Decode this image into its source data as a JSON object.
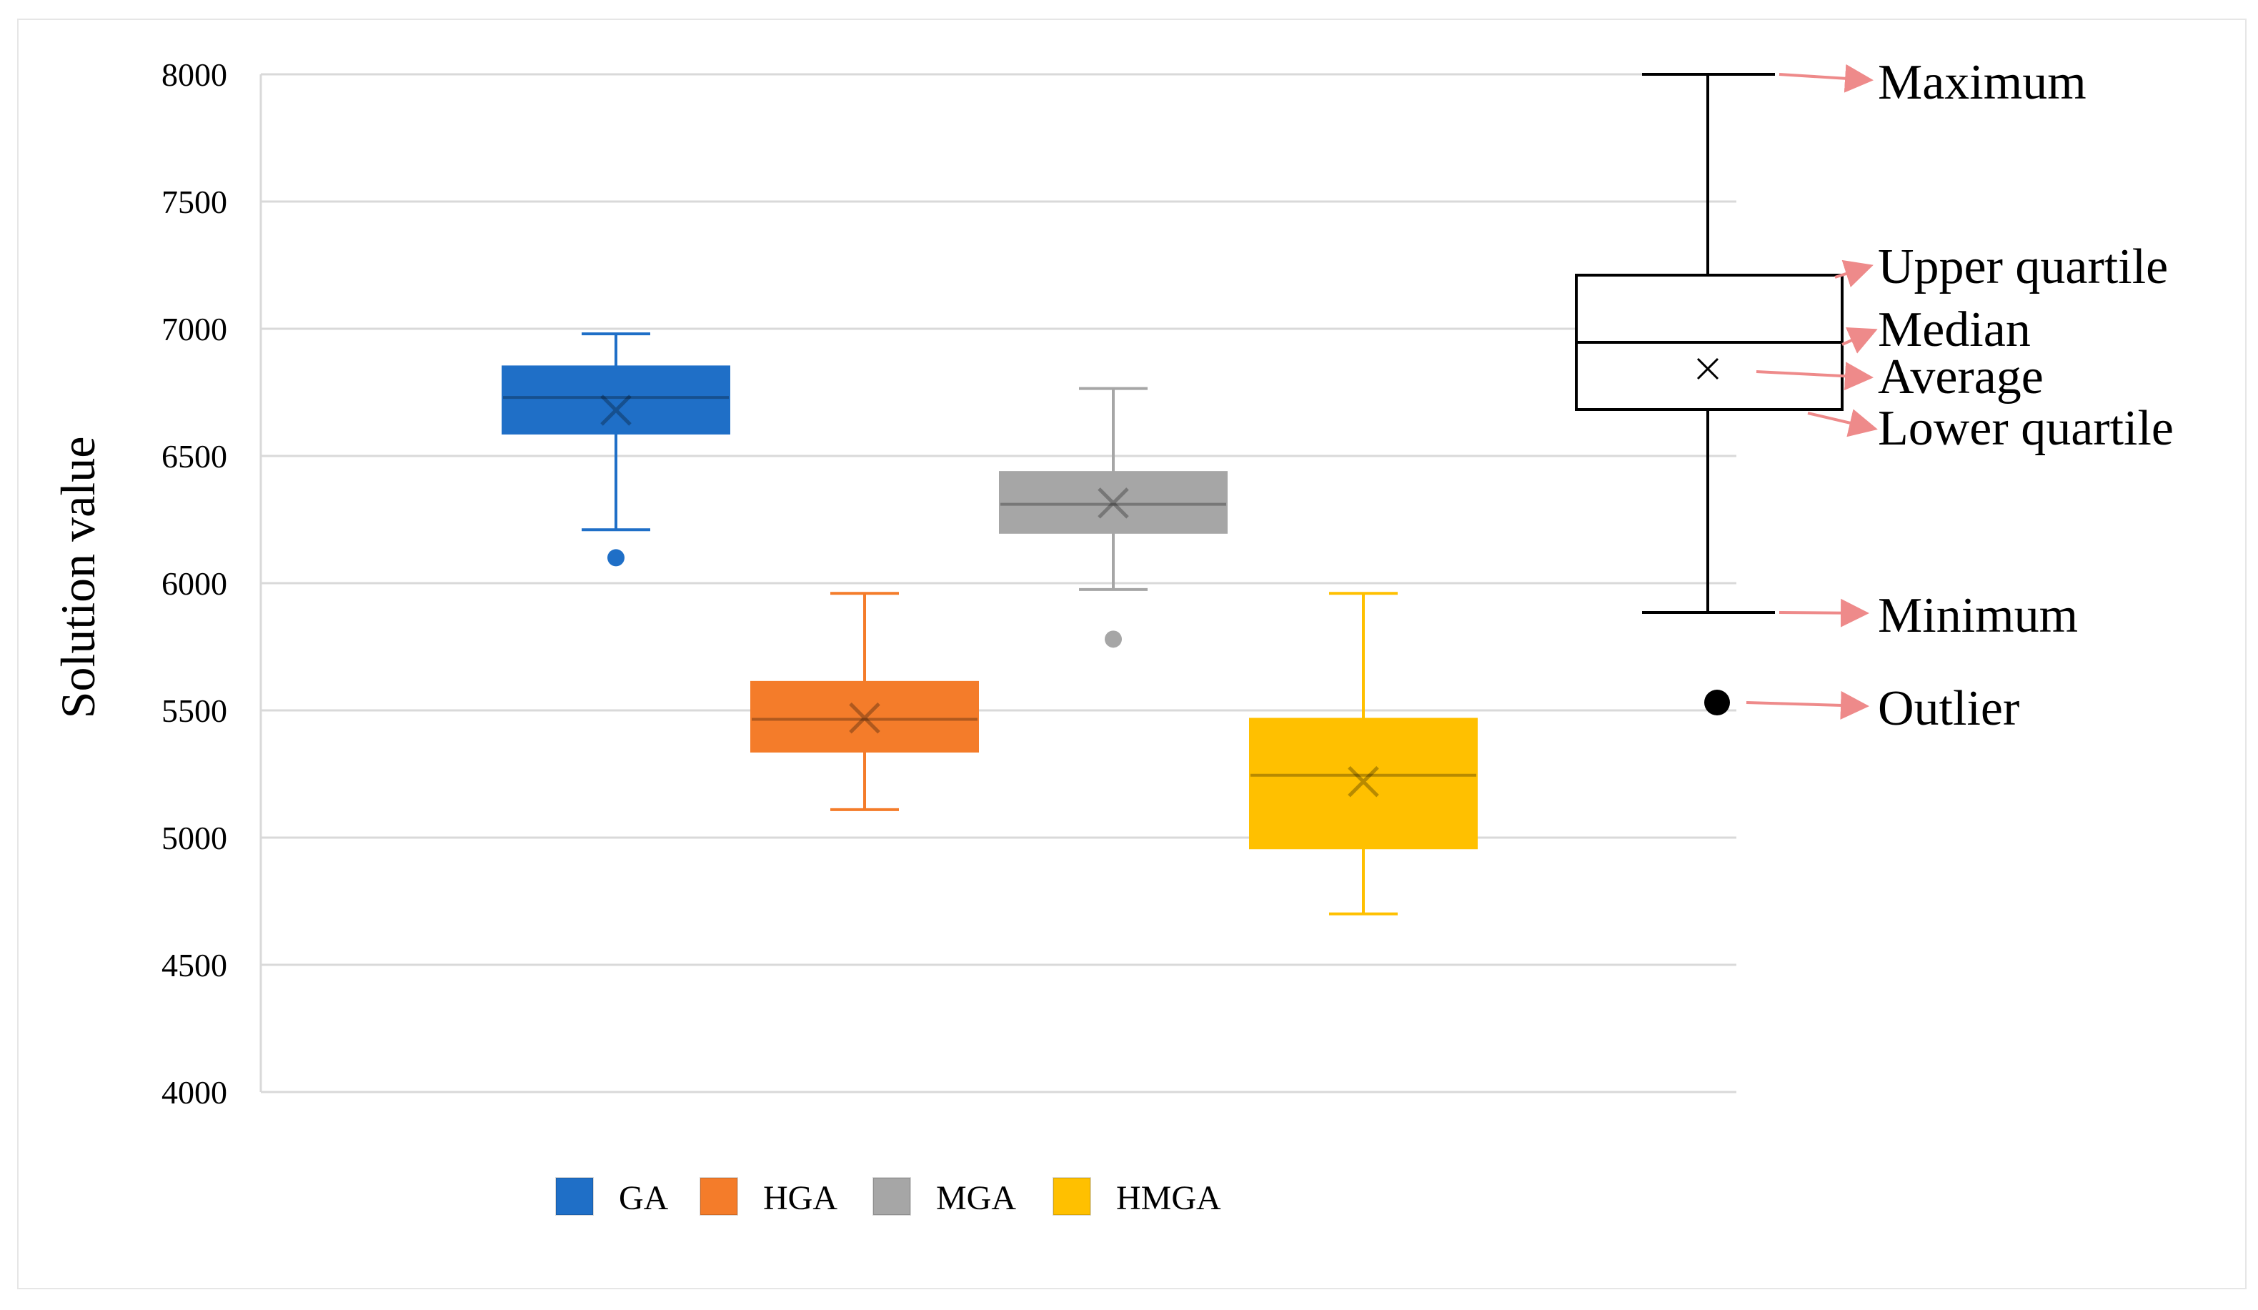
{
  "chart_data": {
    "type": "box",
    "ylabel": "Solution value",
    "ylim": [
      4000,
      8000
    ],
    "yticks": [
      4000,
      4500,
      5000,
      5500,
      6000,
      6500,
      7000,
      7500,
      8000
    ],
    "grid": true,
    "legend_position": "bottom",
    "series": [
      {
        "name": "GA",
        "color": "#1f6fc7",
        "min": 6210,
        "q1": 6590,
        "median": 6730,
        "q3": 6850,
        "max": 6980,
        "mean": 6680,
        "outliers": [
          6100
        ]
      },
      {
        "name": "HGA",
        "color": "#f47c2a",
        "min": 5110,
        "q1": 5340,
        "median": 5465,
        "q3": 5610,
        "max": 5960,
        "mean": 5470,
        "outliers": []
      },
      {
        "name": "MGA",
        "color": "#a6a6a6",
        "min": 5975,
        "q1": 6200,
        "median": 6310,
        "q3": 6435,
        "max": 6765,
        "mean": 6315,
        "outliers": [
          5780
        ]
      },
      {
        "name": "HMGA",
        "color": "#ffc000",
        "min": 4700,
        "q1": 4960,
        "median": 5245,
        "q3": 5465,
        "max": 5960,
        "mean": 5220,
        "outliers": []
      }
    ],
    "key": {
      "labels": {
        "maximum": "Maximum",
        "upper_quartile": "Upper quartile",
        "median": "Median",
        "average": "Average",
        "lower_quartile": "Lower quartile",
        "minimum": "Minimum",
        "outlier": "Outlier"
      },
      "arrow_color": "#ee8a8a"
    }
  }
}
